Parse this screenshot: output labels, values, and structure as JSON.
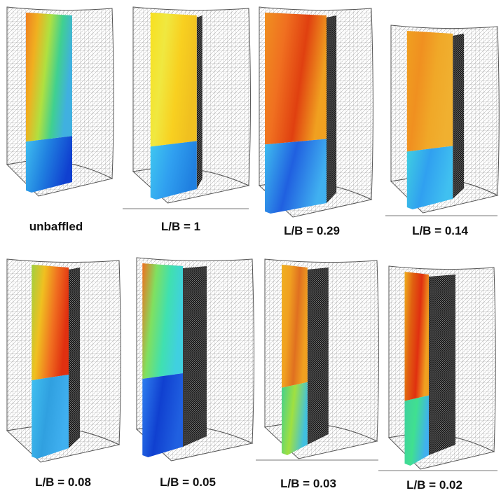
{
  "panels": [
    {
      "label": "unbaffled"
    },
    {
      "label": "L/B = 1"
    },
    {
      "label": "L/B = 0.29"
    },
    {
      "label": "L/B = 0.14"
    },
    {
      "label": "L/B = 0.08"
    },
    {
      "label": "L/B = 0.05"
    },
    {
      "label": "L/B = 0.03"
    },
    {
      "label": "L/B = 0.02"
    }
  ]
}
